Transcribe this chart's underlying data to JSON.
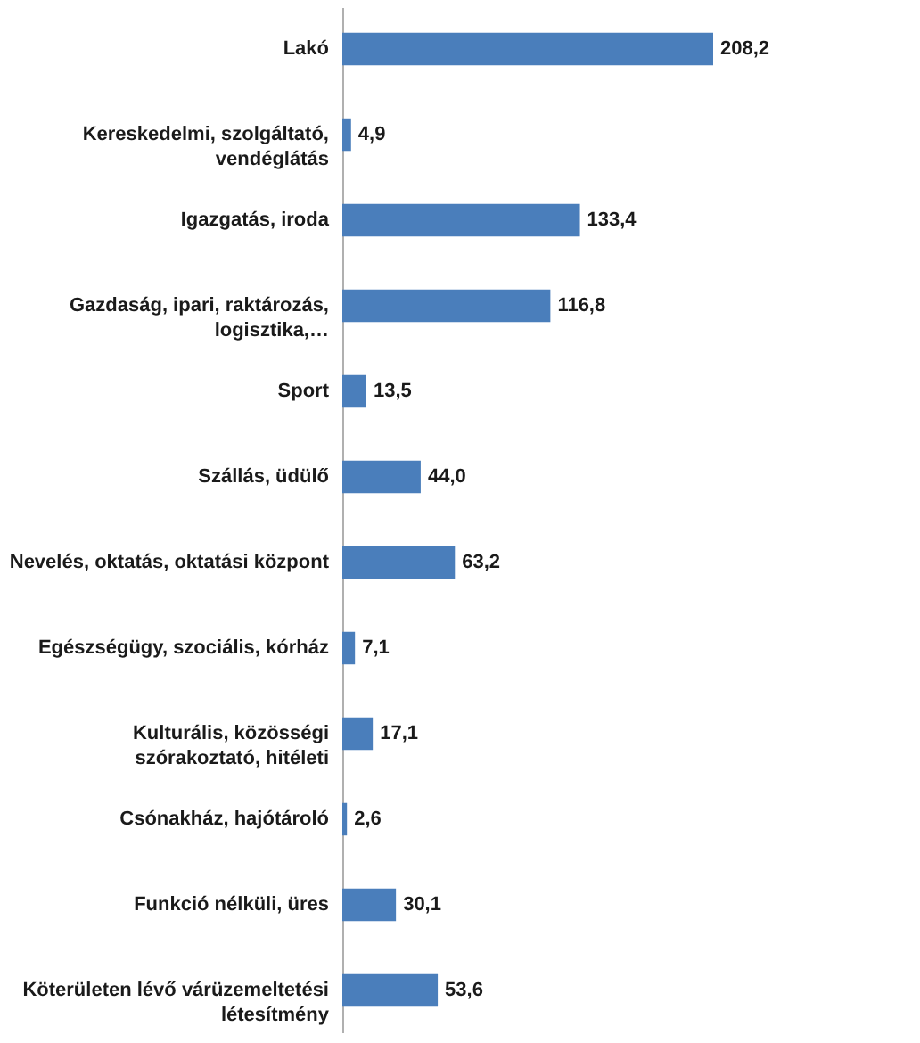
{
  "chart_data": {
    "type": "bar",
    "orientation": "horizontal",
    "categories": [
      "Lakó",
      "Kereskedelmi, szolgáltató, vendéglátás",
      "Igazgatás, iroda",
      "Gazdaság, ipari, raktározás, logisztika,…",
      "Sport",
      "Szállás, üdülő",
      "Nevelés, oktatás, oktatási központ",
      "Egészségügy, szociális, kórház",
      "Kulturális, közösségi szórakoztató, hitéleti",
      "Csónakház, hajótároló",
      "Funkció nélküli, üres",
      "Köterületen lévő várüzemeltetési létesítmény"
    ],
    "values": [
      208.2,
      4.9,
      133.4,
      116.8,
      13.5,
      44.0,
      63.2,
      7.1,
      17.1,
      2.6,
      30.1,
      53.6
    ],
    "value_labels": [
      "208,2",
      "4,9",
      "133,4",
      "116,8",
      "13,5",
      "44,0",
      "63,2",
      "7,1",
      "17,1",
      "2,6",
      "30,1",
      "53,6"
    ],
    "color": "#4a7ebb"
  }
}
